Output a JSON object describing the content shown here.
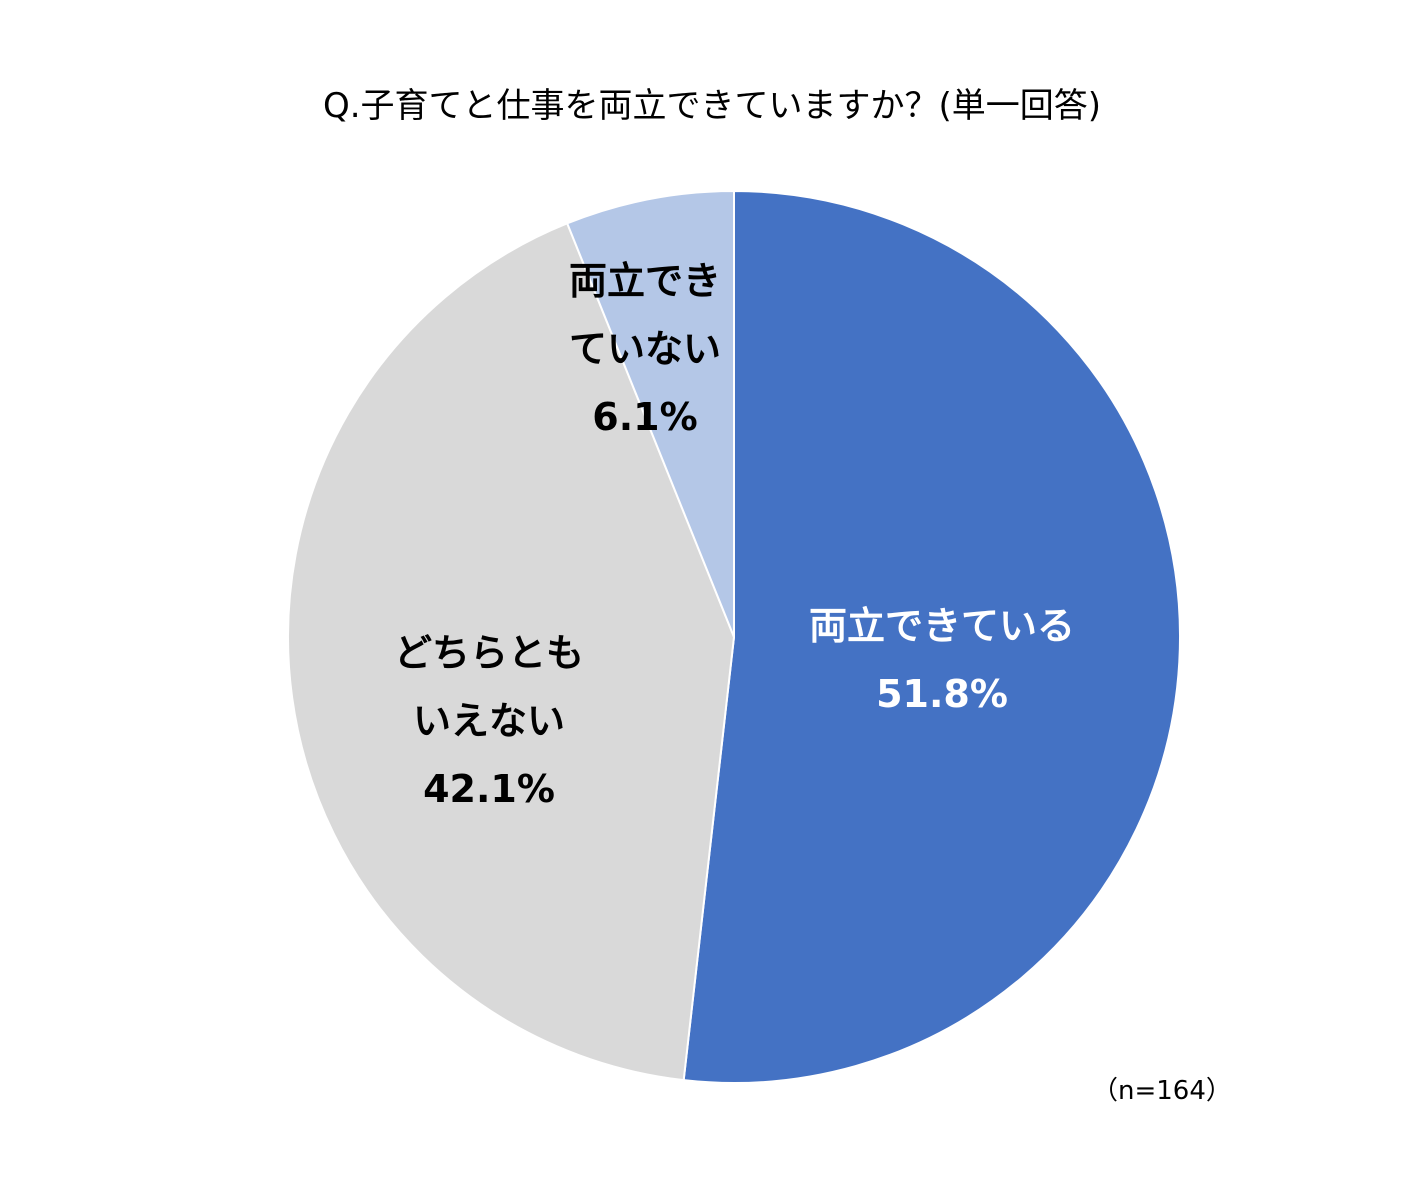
{
  "chart_data": {
    "type": "pie",
    "title": "Q.子育てと仕事を両立できていますか？(単一回答)",
    "note": "（n=164）",
    "start_angle_deg": 0,
    "direction": "clockwise",
    "slices": [
      {
        "name": "両立できている",
        "label_lines": [
          "両立できている"
        ],
        "value": 51.8,
        "value_label": "51.8%",
        "color": "#4472C4",
        "text_color": "#FFFFFF"
      },
      {
        "name": "どちらともいえない",
        "label_lines": [
          "どちらとも",
          "いえない"
        ],
        "value": 42.1,
        "value_label": "42.1%",
        "color": "#D9D9D9",
        "text_color": "#000000"
      },
      {
        "name": "両立できていない",
        "label_lines": [
          "両立でき",
          "ていない"
        ],
        "value": 6.1,
        "value_label": "6.1%",
        "color": "#B4C7E7",
        "text_color": "#000000"
      }
    ]
  }
}
